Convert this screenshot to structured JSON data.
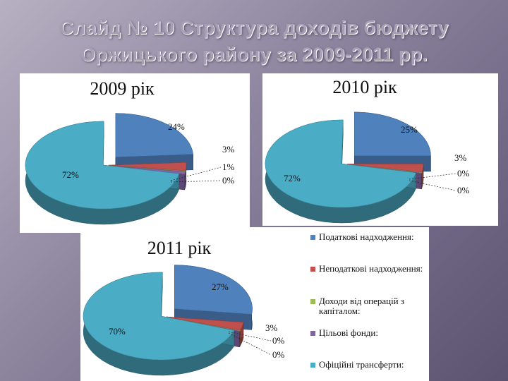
{
  "slide": {
    "title_line1": "Слайд № 10 Структура доходів бюджету",
    "title_line2": "Оржицького району за 2009-2011 рр."
  },
  "colors": {
    "tax": "#4f81bd",
    "nontax": "#c0504d",
    "capital": "#9bbb59",
    "funds": "#8064a2",
    "transfers": "#4bacc6"
  },
  "chart_data": [
    {
      "type": "pie",
      "title": "2009 рік",
      "categories": [
        "Податкові надходження:",
        "Неподаткові надходження:",
        "Доходи від операцій з капіталом:",
        "Цільові фонди:",
        "Офіційні трансферти:"
      ],
      "values": [
        24,
        3,
        0,
        1,
        72
      ],
      "labels": [
        "24%",
        "3%",
        "0%",
        "1%",
        "72%"
      ]
    },
    {
      "type": "pie",
      "title": "2010 рік",
      "categories": [
        "Податкові надходження:",
        "Неподаткові надходження:",
        "Доходи від операцій з капіталом:",
        "Цільові фонди:",
        "Офіційні трансферти:"
      ],
      "values": [
        25,
        3,
        0,
        0,
        72
      ],
      "labels": [
        "25%",
        "3%",
        "0%",
        "0%",
        "72%"
      ]
    },
    {
      "type": "pie",
      "title": "2011 рік",
      "categories": [
        "Податкові надходження:",
        "Неподаткові надходження:",
        "Доходи від операцій з капіталом:",
        "Цільові фонди:",
        "Офіційні трансферти:"
      ],
      "values": [
        27,
        3,
        0,
        0,
        70
      ],
      "labels": [
        "27%",
        "3%",
        "0%",
        "0%",
        "70%"
      ],
      "legend": [
        "Податкові надходження:",
        "Неподаткові надходження:",
        "Доходи від операцій з капіталом:",
        "Цільові фонди:",
        "Офіційні трансферти:"
      ]
    }
  ]
}
